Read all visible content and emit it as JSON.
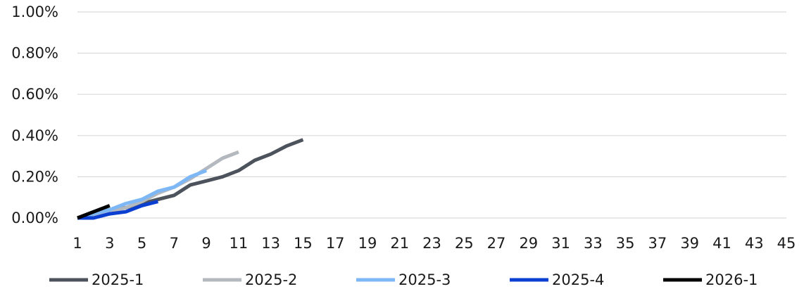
{
  "chart_data": {
    "type": "line",
    "title": "",
    "xlabel": "",
    "ylabel": "",
    "x_categories": [
      1,
      2,
      3,
      4,
      5,
      6,
      7,
      8,
      9,
      10,
      11,
      12,
      13,
      14,
      15,
      16,
      17,
      18,
      19,
      20,
      21,
      22,
      23,
      24,
      25,
      26,
      27,
      28,
      29,
      30,
      31,
      32,
      33,
      34,
      35,
      36,
      37,
      38,
      39,
      40,
      41,
      42,
      43,
      44,
      45
    ],
    "x_tick_labels": [
      "1",
      "3",
      "5",
      "7",
      "9",
      "11",
      "13",
      "15",
      "17",
      "19",
      "21",
      "23",
      "25",
      "27",
      "29",
      "31",
      "33",
      "35",
      "37",
      "39",
      "41",
      "43",
      "45"
    ],
    "y_ticks": [
      0,
      0.2,
      0.4,
      0.6,
      0.8,
      1.0
    ],
    "y_tick_labels": [
      "0.00%",
      "0.20%",
      "0.40%",
      "0.60%",
      "0.80%",
      "1.00%"
    ],
    "ylim": [
      0,
      1.0
    ],
    "y_unit": "%",
    "grid": true,
    "legend_position": "bottom",
    "series": [
      {
        "name": "2025-1",
        "color": "#4d535c",
        "x": [
          1,
          2,
          3,
          4,
          5,
          6,
          7,
          8,
          9,
          10,
          11,
          12,
          13,
          14,
          15
        ],
        "values": [
          0.0,
          0.02,
          0.04,
          0.05,
          0.07,
          0.09,
          0.11,
          0.16,
          0.18,
          0.2,
          0.23,
          0.28,
          0.31,
          0.35,
          0.38
        ]
      },
      {
        "name": "2025-2",
        "color": "#b4b8bf",
        "x": [
          1,
          2,
          3,
          4,
          5,
          6,
          7,
          8,
          9,
          10,
          11
        ],
        "values": [
          0.0,
          0.01,
          0.03,
          0.05,
          0.08,
          0.12,
          0.15,
          0.19,
          0.24,
          0.29,
          0.32
        ]
      },
      {
        "name": "2025-3",
        "color": "#7eb7f6",
        "x": [
          1,
          2,
          3,
          4,
          5,
          6,
          7,
          8,
          9
        ],
        "values": [
          0.0,
          0.02,
          0.04,
          0.07,
          0.09,
          0.13,
          0.15,
          0.2,
          0.23
        ]
      },
      {
        "name": "2025-4",
        "color": "#0a3fd1",
        "x": [
          1,
          2,
          3,
          4,
          5,
          6
        ],
        "values": [
          0.0,
          0.0,
          0.02,
          0.03,
          0.06,
          0.08
        ]
      },
      {
        "name": "2026-1",
        "color": "#000000",
        "x": [
          1,
          2,
          3
        ],
        "values": [
          0.0,
          0.03,
          0.06
        ]
      }
    ]
  }
}
